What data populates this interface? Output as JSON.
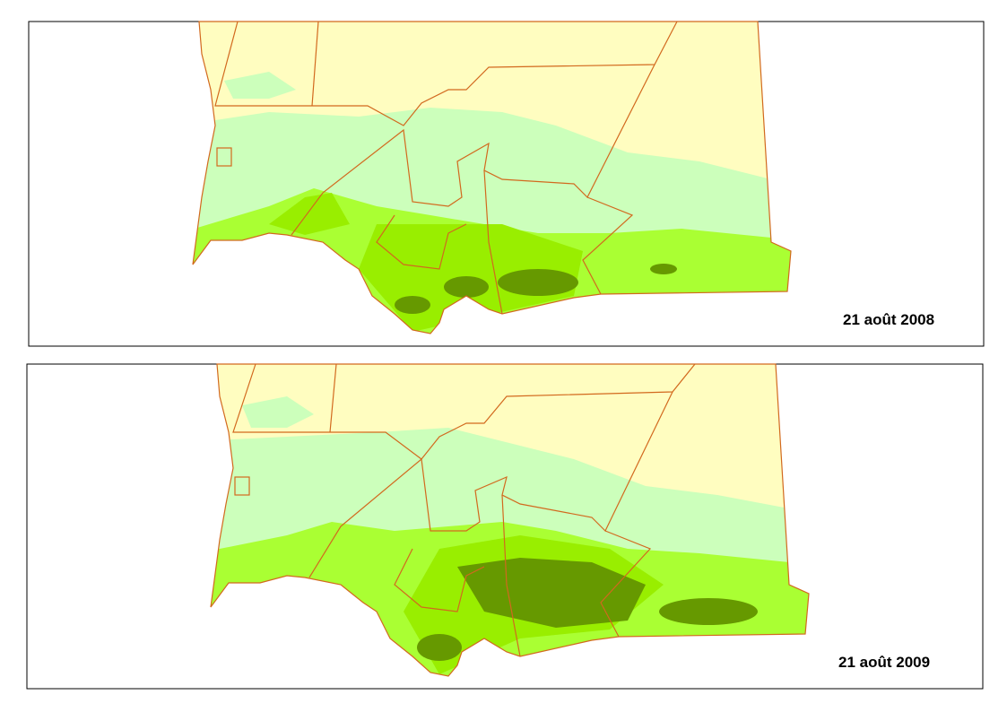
{
  "panels": [
    {
      "label": "21 août 2008"
    },
    {
      "label": "21 août 2009"
    }
  ]
}
